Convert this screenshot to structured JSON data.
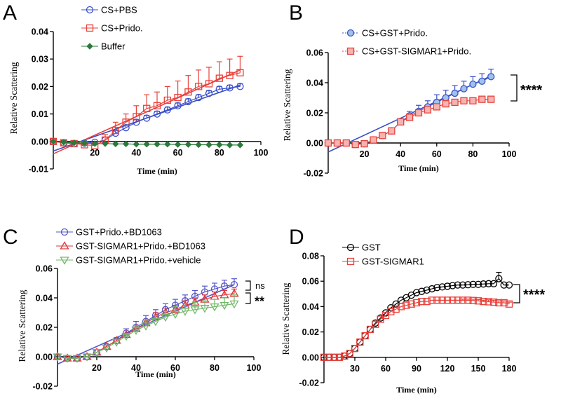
{
  "figure": "Relative scattering time courses, panels A-D",
  "chart_data": [
    {
      "panel": "A",
      "type": "line",
      "xlabel": "Time (min)",
      "ylabel": "Relative Scattering",
      "xlim": [
        0,
        100
      ],
      "ylim": [
        -0.01,
        0.04
      ],
      "xticks": [
        "20",
        "40",
        "60",
        "80",
        "100"
      ],
      "yticks": [
        "-0.01",
        "0.00",
        "0.01",
        "0.02",
        "0.03",
        "0.04"
      ],
      "legend_position": "top",
      "x": [
        0,
        5,
        10,
        15,
        20,
        25,
        30,
        35,
        40,
        45,
        50,
        55,
        60,
        65,
        70,
        75,
        80,
        85,
        90
      ],
      "series": [
        {
          "name": "CS+PBS",
          "color": "#3a4fc8",
          "marker": "circle",
          "values": [
            0,
            -0.0005,
            -0.0008,
            -0.0006,
            -0.0003,
            0.0005,
            0.003,
            0.005,
            0.007,
            0.0085,
            0.01,
            0.0115,
            0.013,
            0.0145,
            0.016,
            0.0175,
            0.019,
            0.0195,
            0.02
          ],
          "errors": [
            0,
            0,
            0,
            0,
            0,
            0,
            0.001,
            0.001,
            0.001,
            0.001,
            0.001,
            0.001,
            0.001,
            0.001,
            0.001,
            0.001,
            0.001,
            0.001,
            0.001
          ],
          "fit": [
            -0.0035,
            0.0205
          ]
        },
        {
          "name": "CS+Prido.",
          "color": "#e8413b",
          "marker": "square",
          "values": [
            0,
            -0.0005,
            -0.0008,
            -0.0012,
            -0.0015,
            0.0005,
            0.004,
            0.007,
            0.009,
            0.012,
            0.013,
            0.015,
            0.016,
            0.018,
            0.02,
            0.021,
            0.023,
            0.024,
            0.025
          ],
          "errors": [
            0,
            0,
            0,
            0,
            0,
            0.002,
            0.003,
            0.003,
            0.004,
            0.005,
            0.005,
            0.005,
            0.006,
            0.006,
            0.006,
            0.006,
            0.006,
            0.006,
            0.006
          ],
          "fit": [
            -0.0045,
            0.026
          ]
        },
        {
          "name": "Buffer",
          "color": "#2a7a3a",
          "marker": "diamond",
          "values": [
            0,
            -0.0003,
            -0.0005,
            -0.0006,
            -0.0008,
            -0.0008,
            -0.0009,
            -0.0009,
            -0.001,
            -0.001,
            -0.001,
            -0.001,
            -0.0011,
            -0.0011,
            -0.0012,
            -0.0012,
            -0.0012,
            -0.0013,
            -0.0013
          ],
          "errors": [],
          "fit": null
        }
      ]
    },
    {
      "panel": "B",
      "type": "line",
      "xlabel": "Time (min)",
      "ylabel": "Relative Scattering",
      "xlim": [
        0,
        100
      ],
      "ylim": [
        -0.02,
        0.06
      ],
      "xticks": [
        "20",
        "40",
        "60",
        "80",
        "100"
      ],
      "yticks": [
        "-0.02",
        "0.00",
        "0.02",
        "0.04",
        "0.06"
      ],
      "legend_position": "top",
      "significance": "****",
      "x": [
        0,
        5,
        10,
        15,
        20,
        25,
        30,
        35,
        40,
        45,
        50,
        55,
        60,
        65,
        70,
        75,
        80,
        85,
        90
      ],
      "series": [
        {
          "name": "CS+GST+Prido.",
          "color": "#3a4fc8",
          "marker": "circle",
          "fill": "#9ec2ea",
          "values": [
            0,
            0,
            0,
            -0.001,
            -0.0005,
            0.002,
            0.005,
            0.008,
            0.014,
            0.018,
            0.021,
            0.024,
            0.027,
            0.03,
            0.033,
            0.036,
            0.039,
            0.041,
            0.044
          ],
          "errors": [
            0,
            0,
            0,
            0,
            0,
            0,
            0,
            0.001,
            0.002,
            0.003,
            0.004,
            0.004,
            0.005,
            0.005,
            0.005,
            0.005,
            0.005,
            0.005,
            0.005
          ],
          "fit": [
            -0.006,
            0.0445
          ]
        },
        {
          "name": "CS+GST-SIGMAR1+Prido.",
          "color": "#e8413b",
          "marker": "square",
          "fill": "#f6b4b0",
          "values": [
            0,
            0,
            0,
            -0.001,
            -0.0005,
            0.002,
            0.005,
            0.008,
            0.014,
            0.017,
            0.02,
            0.022,
            0.024,
            0.026,
            0.027,
            0.028,
            0.028,
            0.029,
            0.029
          ],
          "errors": [
            0,
            0,
            0,
            0,
            0,
            0,
            0,
            0,
            0,
            0,
            0,
            0,
            0.001,
            0.001,
            0.0015,
            0.0015,
            0.0015,
            0.0015,
            0.002
          ],
          "fit": null
        }
      ]
    },
    {
      "panel": "C",
      "type": "line",
      "xlabel": "Time (min)",
      "ylabel": "Relative Scattering",
      "xlim": [
        0,
        100
      ],
      "ylim": [
        -0.02,
        0.06
      ],
      "xticks": [
        "20",
        "40",
        "60",
        "80",
        "100"
      ],
      "yticks": [
        "-0.02",
        "0.00",
        "0.02",
        "0.04",
        "0.06"
      ],
      "legend_position": "top",
      "significance": [
        "ns",
        "**"
      ],
      "x": [
        0,
        5,
        10,
        15,
        20,
        25,
        30,
        35,
        40,
        45,
        50,
        55,
        60,
        65,
        70,
        75,
        80,
        85,
        90
      ],
      "series": [
        {
          "name": "GST+Prido.+BD1063",
          "color": "#5458c8",
          "marker": "circle",
          "values": [
            0,
            -0.001,
            -0.001,
            0,
            0.003,
            0.007,
            0.011,
            0.016,
            0.02,
            0.024,
            0.028,
            0.032,
            0.035,
            0.038,
            0.041,
            0.044,
            0.046,
            0.048,
            0.049
          ],
          "errors": [
            0,
            0,
            0,
            0,
            0,
            0.001,
            0.002,
            0.003,
            0.004,
            0.004,
            0.004,
            0.004,
            0.004,
            0.004,
            0.004,
            0.004,
            0.004,
            0.004,
            0.004
          ],
          "fit": [
            -0.005,
            0.049
          ]
        },
        {
          "name": "GST-SIGMAR1+Prido.+BD1063",
          "color": "#e2353a",
          "marker": "triangle",
          "values": [
            0,
            -0.001,
            -0.001,
            0,
            0.003,
            0.007,
            0.011,
            0.015,
            0.019,
            0.023,
            0.027,
            0.03,
            0.032,
            0.035,
            0.037,
            0.039,
            0.041,
            0.042,
            0.043
          ],
          "errors": [
            0,
            0,
            0,
            0,
            0,
            0,
            0,
            0.001,
            0.002,
            0.002,
            0.003,
            0.003,
            0.003,
            0.003,
            0.003,
            0.003,
            0.003,
            0.003,
            0.003
          ],
          "fit": null
        },
        {
          "name": "GST-SIGMAR1+Prido.+vehicle",
          "color": "#72b86a",
          "marker": "triangle-down",
          "values": [
            0,
            -0.001,
            -0.001,
            0,
            0.003,
            0.006,
            0.01,
            0.014,
            0.018,
            0.021,
            0.024,
            0.027,
            0.029,
            0.031,
            0.032,
            0.033,
            0.034,
            0.035,
            0.036
          ],
          "errors": [
            0,
            0,
            0,
            0,
            0,
            0,
            0,
            0.001,
            0.003,
            0.004,
            0.004,
            0.004,
            0.005,
            0.005,
            0.005,
            0.005,
            0.005,
            0.005,
            0.006
          ],
          "fit": null
        }
      ]
    },
    {
      "panel": "D",
      "type": "line",
      "xlabel": "Time (min)",
      "ylabel": "Relative Scattering",
      "xlim": [
        0,
        180
      ],
      "ylim": [
        -0.02,
        0.08
      ],
      "xticks": [
        "30",
        "60",
        "90",
        "120",
        "150",
        "180"
      ],
      "yticks": [
        "-0.02",
        "0.00",
        "0.02",
        "0.04",
        "0.06",
        "0.08"
      ],
      "legend_position": "top",
      "significance": "****",
      "x": [
        0,
        5,
        10,
        15,
        20,
        25,
        30,
        35,
        40,
        45,
        50,
        55,
        60,
        65,
        70,
        75,
        80,
        85,
        90,
        95,
        100,
        105,
        110,
        115,
        120,
        125,
        130,
        135,
        140,
        145,
        150,
        155,
        160,
        165,
        170,
        175,
        180
      ],
      "series": [
        {
          "name": "GST",
          "color": "#000000",
          "marker": "circle",
          "values": [
            0,
            0,
            0,
            0,
            0.001,
            0.003,
            0.007,
            0.012,
            0.017,
            0.022,
            0.027,
            0.031,
            0.035,
            0.039,
            0.042,
            0.045,
            0.047,
            0.049,
            0.051,
            0.052,
            0.053,
            0.054,
            0.055,
            0.0555,
            0.056,
            0.0565,
            0.057,
            0.057,
            0.0572,
            0.0575,
            0.0575,
            0.0578,
            0.058,
            0.058,
            0.062,
            0.057,
            0.057
          ],
          "errors": [
            0,
            0,
            0,
            0,
            0,
            0,
            0,
            0,
            0,
            0,
            0,
            0,
            0,
            0,
            0,
            0,
            0,
            0,
            0,
            0,
            0,
            0,
            0,
            0,
            0,
            0,
            0,
            0,
            0,
            0,
            0,
            0,
            0,
            0,
            0.005,
            0,
            0
          ],
          "fit": null
        },
        {
          "name": "GST-SIGMAR1",
          "color": "#e8413b",
          "marker": "square",
          "values": [
            0,
            0,
            0,
            0,
            0.001,
            0.003,
            0.007,
            0.012,
            0.017,
            0.022,
            0.026,
            0.03,
            0.033,
            0.036,
            0.038,
            0.04,
            0.041,
            0.042,
            0.043,
            0.044,
            0.044,
            0.045,
            0.045,
            0.045,
            0.045,
            0.045,
            0.045,
            0.045,
            0.045,
            0.0448,
            0.0445,
            0.044,
            0.0438,
            0.0435,
            0.043,
            0.043,
            0.042
          ],
          "errors": [
            0,
            0,
            0,
            0,
            0,
            0,
            0,
            0,
            0,
            0,
            0,
            0,
            0,
            0,
            0,
            0,
            0,
            0,
            0,
            0,
            0,
            0,
            0,
            0,
            0,
            0,
            0,
            0.001,
            0.001,
            0.001,
            0.001,
            0.001,
            0.0015,
            0.0015,
            0.0015,
            0.0015,
            0.0015
          ],
          "fit": null
        }
      ]
    }
  ]
}
